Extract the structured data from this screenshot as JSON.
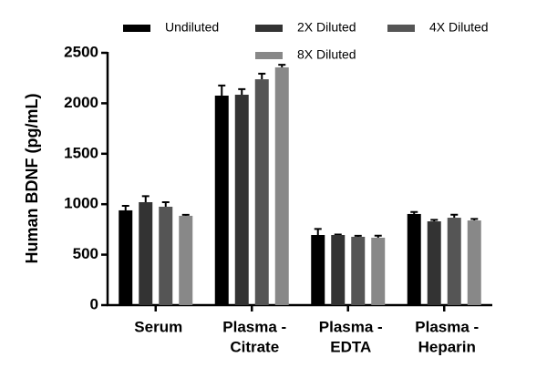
{
  "chart_data": {
    "type": "bar",
    "y_label": "Human  BDNF  (pg/mL)",
    "categories": [
      [
        "Serum"
      ],
      [
        "Plasma -",
        "Citrate"
      ],
      [
        "Plasma -",
        "EDTA"
      ],
      [
        "Plasma -",
        "Heparin"
      ]
    ],
    "series": [
      {
        "name": "Undiluted",
        "color": "#000000",
        "values": [
          939,
          2076,
          695,
          903
        ],
        "errors": [
          45,
          100,
          60,
          20
        ]
      },
      {
        "name": "2X Diluted",
        "color": "#333333",
        "values": [
          1020,
          2085,
          695,
          830
        ],
        "errors": [
          60,
          55,
          5,
          15
        ]
      },
      {
        "name": "4X Diluted",
        "color": "#555555",
        "values": [
          975,
          2238,
          677,
          866
        ],
        "errors": [
          45,
          55,
          10,
          30
        ]
      },
      {
        "name": "8X Diluted",
        "color": "#888888",
        "values": [
          885,
          2356,
          668,
          839
        ],
        "errors": [
          10,
          25,
          20,
          15
        ]
      }
    ],
    "ylim": [
      0,
      2500
    ],
    "yticks": [
      0,
      500,
      1000,
      1500,
      2000,
      2500
    ],
    "grid": false,
    "legend": "top"
  }
}
